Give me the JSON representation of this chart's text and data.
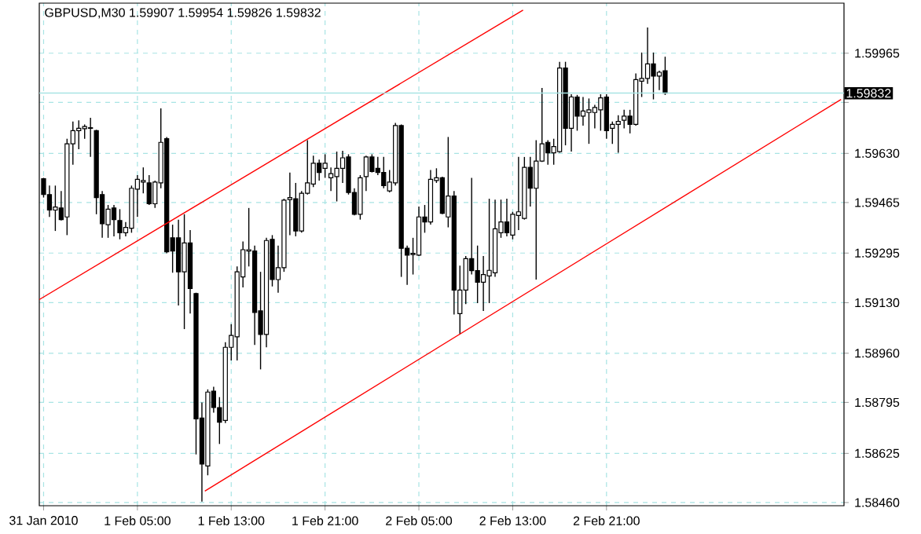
{
  "chart_data": {
    "type": "candlestick",
    "title": "GBPUSD,M30  1.59907 1.59954 1.59826 1.59832",
    "x": [
      "2010-01-31T21:00",
      "2010-01-31T21:30",
      "2010-01-31T22:00",
      "2010-01-31T22:30",
      "2010-01-31T23:00",
      "2010-01-31T23:30",
      "2010-02-01T00:00",
      "2010-02-01T00:30",
      "2010-02-01T01:00",
      "2010-02-01T01:30",
      "2010-02-01T02:00",
      "2010-02-01T02:30",
      "2010-02-01T03:00",
      "2010-02-01T03:30",
      "2010-02-01T04:00",
      "2010-02-01T04:30",
      "2010-02-01T05:00",
      "2010-02-01T05:30",
      "2010-02-01T06:00",
      "2010-02-01T06:30",
      "2010-02-01T07:00",
      "2010-02-01T07:30",
      "2010-02-01T08:00",
      "2010-02-01T08:30",
      "2010-02-01T09:00",
      "2010-02-01T09:30",
      "2010-02-01T10:00",
      "2010-02-01T10:30",
      "2010-02-01T11:00",
      "2010-02-01T11:30",
      "2010-02-01T12:00",
      "2010-02-01T12:30",
      "2010-02-01T13:00",
      "2010-02-01T13:30",
      "2010-02-01T14:00",
      "2010-02-01T14:30",
      "2010-02-01T15:00",
      "2010-02-01T15:30",
      "2010-02-01T16:00",
      "2010-02-01T16:30",
      "2010-02-01T17:00",
      "2010-02-01T17:30",
      "2010-02-01T18:00",
      "2010-02-01T18:30",
      "2010-02-01T19:00",
      "2010-02-01T19:30",
      "2010-02-01T20:00",
      "2010-02-01T20:30",
      "2010-02-01T21:00",
      "2010-02-01T21:30",
      "2010-02-01T22:00",
      "2010-02-01T22:30",
      "2010-02-01T23:00",
      "2010-02-01T23:30",
      "2010-02-02T00:00",
      "2010-02-02T00:30",
      "2010-02-02T01:00",
      "2010-02-02T01:30",
      "2010-02-02T02:00",
      "2010-02-02T02:30",
      "2010-02-02T03:00",
      "2010-02-02T03:30",
      "2010-02-02T04:00",
      "2010-02-02T04:30",
      "2010-02-02T05:00",
      "2010-02-02T05:30",
      "2010-02-02T06:00",
      "2010-02-02T06:30",
      "2010-02-02T07:00",
      "2010-02-02T07:30",
      "2010-02-02T08:00",
      "2010-02-02T08:30",
      "2010-02-02T09:00",
      "2010-02-02T09:30",
      "2010-02-02T10:00",
      "2010-02-02T10:30",
      "2010-02-02T11:00",
      "2010-02-02T11:30",
      "2010-02-02T12:00",
      "2010-02-02T12:30",
      "2010-02-02T13:00",
      "2010-02-02T13:30",
      "2010-02-02T14:00",
      "2010-02-02T14:30",
      "2010-02-02T15:00",
      "2010-02-02T15:30",
      "2010-02-02T16:00",
      "2010-02-02T16:30",
      "2010-02-02T17:00",
      "2010-02-02T17:30",
      "2010-02-02T18:00",
      "2010-02-02T18:30",
      "2010-02-02T19:00",
      "2010-02-02T19:30",
      "2010-02-02T20:00",
      "2010-02-02T20:30",
      "2010-02-02T21:00",
      "2010-02-02T21:30",
      "2010-02-02T22:00",
      "2010-02-02T22:30",
      "2010-02-02T23:00",
      "2010-02-02T23:30",
      "2010-02-03T00:00",
      "2010-02-03T00:30",
      "2010-02-03T01:00",
      "2010-02-03T01:30",
      "2010-02-03T02:00"
    ],
    "ohlc": [
      [
        1.59545,
        1.59548,
        1.59482,
        1.59492
      ],
      [
        1.59492,
        1.59522,
        1.59417,
        1.5944
      ],
      [
        1.5944,
        1.59522,
        1.5937,
        1.5945
      ],
      [
        1.59447,
        1.59504,
        1.59405,
        1.59408
      ],
      [
        1.59417,
        1.59679,
        1.59356,
        1.59662
      ],
      [
        1.59662,
        1.59737,
        1.59592,
        1.59706
      ],
      [
        1.59706,
        1.59741,
        1.59644,
        1.59714
      ],
      [
        1.59713,
        1.59727,
        1.59679,
        1.5972
      ],
      [
        1.59714,
        1.59749,
        1.59618,
        1.59716
      ],
      [
        1.59706,
        1.59709,
        1.59426,
        1.59482
      ],
      [
        1.59492,
        1.59504,
        1.59347,
        1.59394
      ],
      [
        1.59391,
        1.59457,
        1.59347,
        1.59443
      ],
      [
        1.59447,
        1.59457,
        1.59352,
        1.59408
      ],
      [
        1.59405,
        1.59443,
        1.59342,
        1.59364
      ],
      [
        1.59364,
        1.594,
        1.59352,
        1.59382
      ],
      [
        1.59379,
        1.59522,
        1.59364,
        1.59513
      ],
      [
        1.5951,
        1.59557,
        1.59417,
        1.59543
      ],
      [
        1.59534,
        1.59583,
        1.59496,
        1.59539
      ],
      [
        1.59531,
        1.59557,
        1.59457,
        1.59461
      ],
      [
        1.59461,
        1.59539,
        1.59447,
        1.59534
      ],
      [
        1.59531,
        1.59781,
        1.59513,
        1.59667
      ],
      [
        1.59679,
        1.59685,
        1.59295,
        1.593
      ],
      [
        1.59347,
        1.59391,
        1.5923,
        1.59303
      ],
      [
        1.59347,
        1.59408,
        1.5912,
        1.59233
      ],
      [
        1.59233,
        1.59426,
        1.59041,
        1.5933
      ],
      [
        1.5933,
        1.59373,
        1.59093,
        1.59177
      ],
      [
        1.5916,
        1.59163,
        1.58621,
        1.5874
      ],
      [
        1.58743,
        1.58795,
        1.58463,
        1.58589
      ],
      [
        1.58582,
        1.58839,
        1.58551,
        1.5883
      ],
      [
        1.58833,
        1.58848,
        1.58761,
        1.58778
      ],
      [
        1.58778,
        1.58813,
        1.58656,
        1.58729
      ],
      [
        1.58735,
        1.58997,
        1.58726,
        1.5898
      ],
      [
        1.5898,
        1.59058,
        1.58936,
        1.5902
      ],
      [
        1.59015,
        1.59251,
        1.58936,
        1.59233
      ],
      [
        1.59216,
        1.59335,
        1.59181,
        1.59307
      ],
      [
        1.59303,
        1.59447,
        1.59251,
        1.59307
      ],
      [
        1.59303,
        1.59321,
        1.58988,
        1.59097
      ],
      [
        1.59102,
        1.59233,
        1.58906,
        1.59023
      ],
      [
        1.59023,
        1.59347,
        1.5898,
        1.59338
      ],
      [
        1.59342,
        1.59356,
        1.59184,
        1.59207
      ],
      [
        1.59207,
        1.59321,
        1.59163,
        1.59247
      ],
      [
        1.59247,
        1.59478,
        1.59233,
        1.59473
      ],
      [
        1.59475,
        1.59566,
        1.59356,
        1.59482
      ],
      [
        1.59478,
        1.59531,
        1.59352,
        1.5937
      ],
      [
        1.5937,
        1.59504,
        1.59364,
        1.59496
      ],
      [
        1.59496,
        1.59674,
        1.59492,
        1.59531
      ],
      [
        1.59527,
        1.59622,
        1.59517,
        1.59597
      ],
      [
        1.59597,
        1.59609,
        1.59539,
        1.59566
      ],
      [
        1.5958,
        1.59627,
        1.59548,
        1.59597
      ],
      [
        1.59548,
        1.59583,
        1.59504,
        1.59562
      ],
      [
        1.59552,
        1.59636,
        1.59469,
        1.5958
      ],
      [
        1.5958,
        1.59639,
        1.59531,
        1.59615
      ],
      [
        1.59618,
        1.59627,
        1.59492,
        1.59499
      ],
      [
        1.59499,
        1.59513,
        1.59422,
        1.59426
      ],
      [
        1.59426,
        1.59557,
        1.59408,
        1.59548
      ],
      [
        1.59552,
        1.59622,
        1.59504,
        1.59618
      ],
      [
        1.59618,
        1.59627,
        1.59566,
        1.59569
      ],
      [
        1.5958,
        1.59618,
        1.59557,
        1.59566
      ],
      [
        1.59566,
        1.59618,
        1.59513,
        1.59522
      ],
      [
        1.59504,
        1.59574,
        1.59499,
        1.59534
      ],
      [
        1.59531,
        1.59732,
        1.59522,
        1.59723
      ],
      [
        1.59723,
        1.59727,
        1.59216,
        1.59312
      ],
      [
        1.59312,
        1.59321,
        1.59189,
        1.59289
      ],
      [
        1.59291,
        1.59347,
        1.59224,
        1.59295
      ],
      [
        1.59289,
        1.59452,
        1.59286,
        1.59417
      ],
      [
        1.59417,
        1.59457,
        1.59364,
        1.594
      ],
      [
        1.594,
        1.59574,
        1.59391,
        1.59543
      ],
      [
        1.59539,
        1.5958,
        1.59531,
        1.59548
      ],
      [
        1.59548,
        1.59552,
        1.59426,
        1.59429
      ],
      [
        1.59417,
        1.59685,
        1.59382,
        1.59487
      ],
      [
        1.59487,
        1.59504,
        1.5909,
        1.59172
      ],
      [
        1.59093,
        1.59254,
        1.59023,
        1.59172
      ],
      [
        1.59172,
        1.59286,
        1.59125,
        1.59277
      ],
      [
        1.59277,
        1.59548,
        1.59224,
        1.59237
      ],
      [
        1.59237,
        1.59321,
        1.59128,
        1.59198
      ],
      [
        1.59198,
        1.59286,
        1.59102,
        1.59224
      ],
      [
        1.59219,
        1.59478,
        1.59128,
        1.59238
      ],
      [
        1.5923,
        1.59475,
        1.59216,
        1.59377
      ],
      [
        1.59364,
        1.59475,
        1.59347,
        1.594
      ],
      [
        1.594,
        1.59478,
        1.59352,
        1.59364
      ],
      [
        1.59356,
        1.59434,
        1.59342,
        1.59426
      ],
      [
        1.59422,
        1.59618,
        1.59373,
        1.59434
      ],
      [
        1.59412,
        1.59618,
        1.59408,
        1.59583
      ],
      [
        1.59583,
        1.59618,
        1.59452,
        1.59513
      ],
      [
        1.59513,
        1.59674,
        1.59207,
        1.59604
      ],
      [
        1.59604,
        1.59849,
        1.59601,
        1.59662
      ],
      [
        1.59667,
        1.59674,
        1.59592,
        1.59632
      ],
      [
        1.59632,
        1.59679,
        1.59592,
        1.59653
      ],
      [
        1.59636,
        1.59937,
        1.59632,
        1.59916
      ],
      [
        1.59916,
        1.59937,
        1.59657,
        1.59714
      ],
      [
        1.59714,
        1.59828,
        1.59636,
        1.59819
      ],
      [
        1.59819,
        1.59826,
        1.59706,
        1.59755
      ],
      [
        1.59755,
        1.59819,
        1.59723,
        1.59772
      ],
      [
        1.59767,
        1.59814,
        1.59662,
        1.59776
      ],
      [
        1.59767,
        1.59793,
        1.59714,
        1.59784
      ],
      [
        1.59776,
        1.59828,
        1.59706,
        1.59816
      ],
      [
        1.59819,
        1.59828,
        1.59679,
        1.59706
      ],
      [
        1.59714,
        1.59737,
        1.59662,
        1.59727
      ],
      [
        1.59727,
        1.59758,
        1.59632,
        1.59737
      ],
      [
        1.59741,
        1.59776,
        1.59714,
        1.59755
      ],
      [
        1.59755,
        1.59776,
        1.59697,
        1.59727
      ],
      [
        1.59727,
        1.59898,
        1.59723,
        1.59877
      ],
      [
        1.59872,
        1.59968,
        1.59819,
        1.59881
      ],
      [
        1.59881,
        1.60052,
        1.59863,
        1.5993
      ],
      [
        1.5993,
        1.59968,
        1.59811,
        1.59889
      ],
      [
        1.59889,
        1.59907,
        1.59842,
        1.59902
      ],
      [
        1.59907,
        1.59954,
        1.59826,
        1.59832
      ]
    ],
    "series": [
      {
        "type": "line",
        "color": "#ff0000",
        "x": [
          "2010-01-31T20:38",
          "2010-02-02T13:53"
        ],
        "values": [
          1.5914,
          1.6011
        ]
      },
      {
        "type": "line",
        "color": "#ff0000",
        "x": [
          "2010-02-01T10:45",
          "2010-02-03T17:00"
        ],
        "values": [
          1.58498,
          1.59811
        ]
      }
    ],
    "xlim": [
      "2010-01-31T20:38",
      "2010-02-03T17:15"
    ],
    "ylim": [
      1.58449,
      1.60133
    ],
    "xticks": [
      {
        "value": "2010-01-31T21:00",
        "label": "31 Jan 2010"
      },
      {
        "value": "2010-02-01T05:00",
        "label": "1 Feb 05:00"
      },
      {
        "value": "2010-02-01T13:00",
        "label": "1 Feb 13:00"
      },
      {
        "value": "2010-02-01T21:00",
        "label": "1 Feb 21:00"
      },
      {
        "value": "2010-02-02T05:00",
        "label": "2 Feb 05:00"
      },
      {
        "value": "2010-02-02T13:00",
        "label": "2 Feb 13:00"
      },
      {
        "value": "2010-02-02T21:00",
        "label": "2 Feb 21:00"
      }
    ],
    "yticks": [
      1.59965,
      {
        "value": 1.598,
        "label": null
      },
      {
        "value": 1.5963,
        "label": "1.59630"
      },
      1.59465,
      1.59295,
      {
        "value": 1.5913,
        "label": "1.59130"
      },
      {
        "value": 1.5896,
        "label": "1.58960"
      },
      1.58795,
      1.58625,
      {
        "value": 1.5846,
        "label": "1.58460"
      }
    ],
    "ref_lines": [
      {
        "axis": "y",
        "value": 1.59832,
        "label": "1.59832",
        "color": "#a8e4e4"
      }
    ],
    "grid": true
  }
}
